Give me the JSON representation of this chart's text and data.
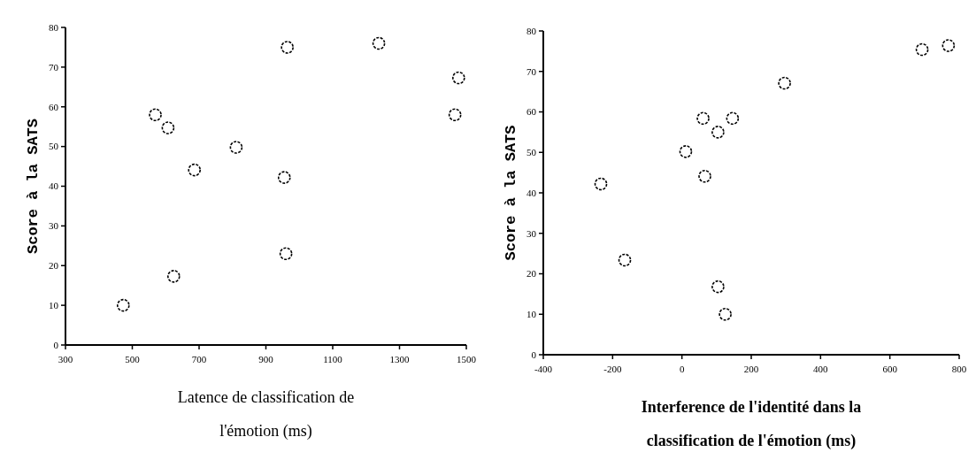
{
  "chart_data": [
    {
      "type": "scatter",
      "xlabel": "Latence de classification de l'émotion (ms)",
      "ylabel": "Score à la SATS",
      "xlim": [
        300,
        1500
      ],
      "xticks": [
        300,
        500,
        700,
        900,
        1100,
        1300,
        1500
      ],
      "ylim": [
        0,
        80
      ],
      "yticks": [
        0,
        10,
        20,
        30,
        40,
        50,
        60,
        70,
        80
      ],
      "marker": "circle",
      "grid": false,
      "series": [
        {
          "color": "#000000",
          "x": [
            964,
            1238,
            1477,
            1466,
            569,
            607,
            811,
            686,
            955,
            960,
            624,
            473
          ],
          "values": [
            75,
            76,
            67.3,
            58,
            58,
            54.7,
            49.8,
            44.1,
            42.2,
            23,
            17.3,
            10
          ]
        }
      ]
    },
    {
      "type": "scatter",
      "xlabel": "Interference de l'identité dans la classification de l'émotion (ms)",
      "ylabel": "Score à la SATS",
      "xlim": [
        -400,
        800
      ],
      "xticks": [
        -400,
        -200,
        0,
        200,
        400,
        600,
        800
      ],
      "ylim": [
        0,
        80
      ],
      "yticks": [
        0,
        10,
        20,
        30,
        40,
        50,
        60,
        70,
        80
      ],
      "marker": "circle",
      "grid": false,
      "series": [
        {
          "color": "#000000",
          "x": [
            769,
            693,
            296,
            61,
            146,
            104,
            11,
            66,
            -234,
            -165,
            104,
            125
          ],
          "values": [
            76.4,
            75.4,
            67.1,
            58.4,
            58.4,
            55,
            50.2,
            44.1,
            42.2,
            23.4,
            16.8,
            10
          ]
        }
      ]
    }
  ]
}
